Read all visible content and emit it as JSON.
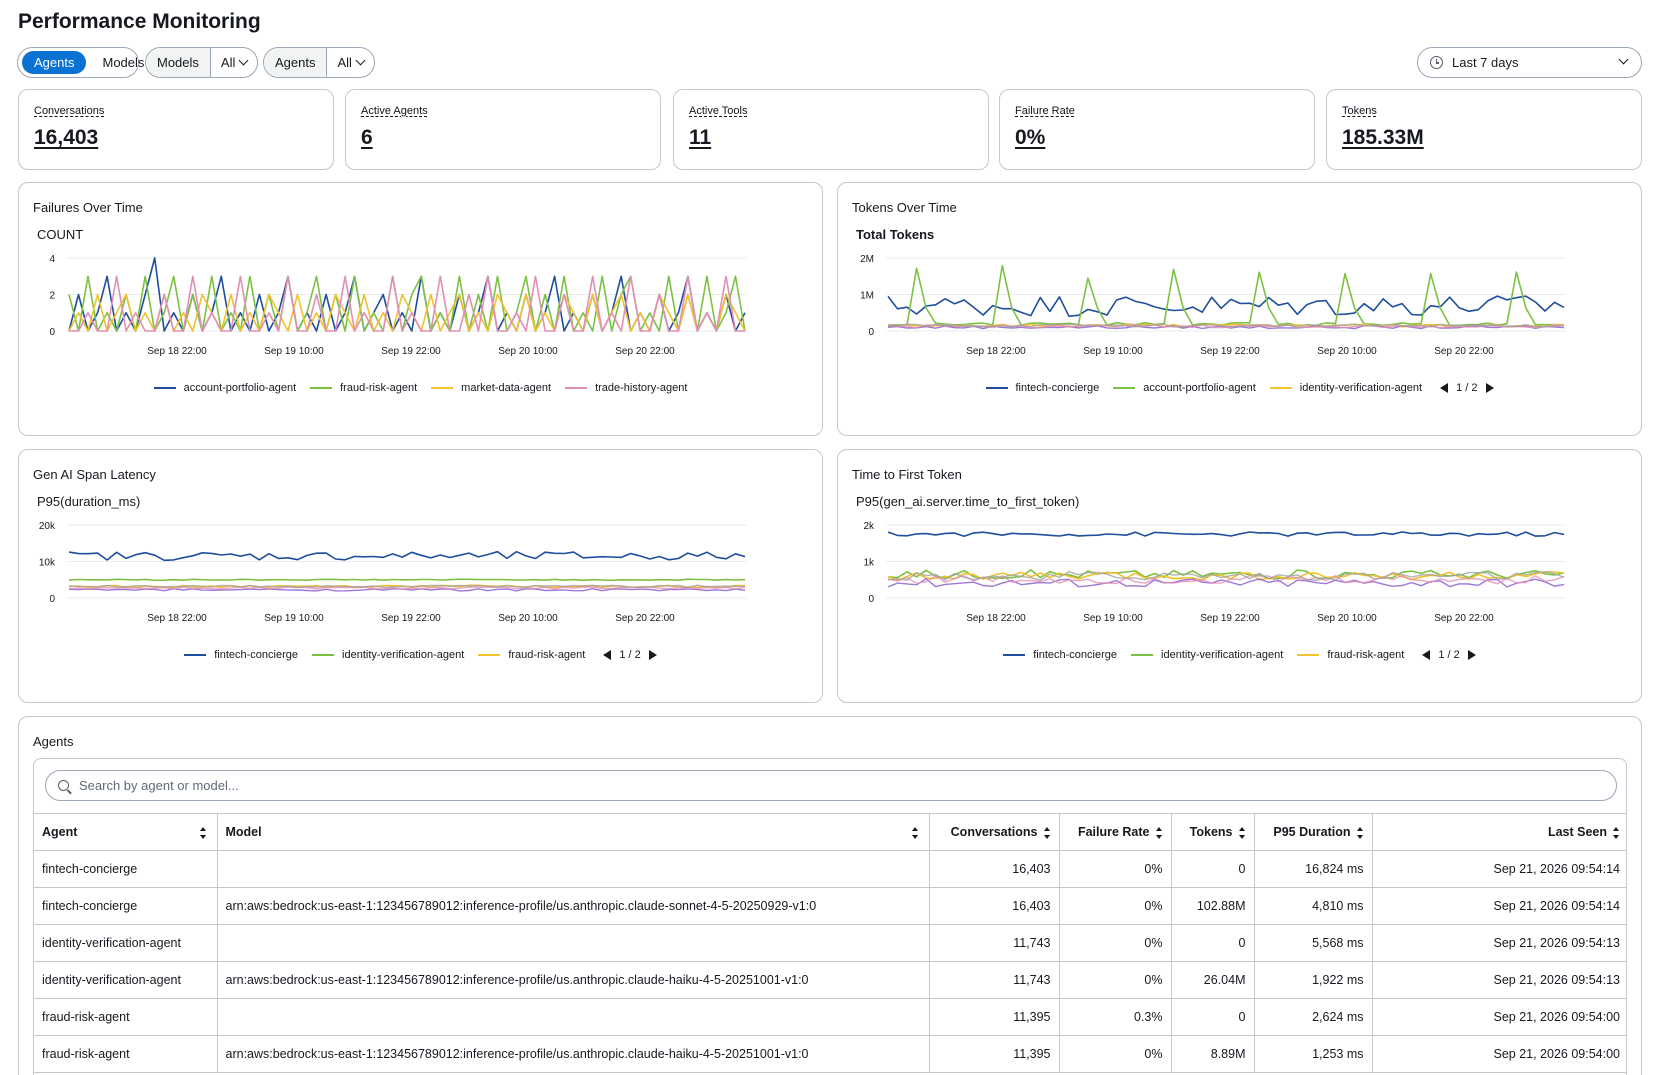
{
  "page": {
    "title": "Performance Monitoring"
  },
  "filters": {
    "view_toggle": [
      "Agents",
      "Models"
    ],
    "active_view": "Agents",
    "models_label": "Models",
    "models_value": "All",
    "agents_label": "Agents",
    "agents_value": "All",
    "date_range": "Last 7 days"
  },
  "kpis": [
    {
      "label": "Conversations",
      "value": "16,403"
    },
    {
      "label": "Active Agents",
      "value": "6"
    },
    {
      "label": "Active Tools",
      "value": "11"
    },
    {
      "label": "Failure Rate",
      "value": "0%"
    },
    {
      "label": "Tokens",
      "value": "185.33M"
    }
  ],
  "charts": {
    "failures": {
      "title": "Failures Over Time",
      "ylabel": "COUNT",
      "legend": [
        "account-portfolio-agent",
        "fraud-risk-agent",
        "market-data-agent",
        "trade-history-agent"
      ]
    },
    "tokens": {
      "title": "Tokens Over Time",
      "ylabel": "Total Tokens",
      "legend": [
        "fintech-concierge",
        "account-portfolio-agent",
        "identity-verification-agent"
      ],
      "pager": "1 / 2"
    },
    "latency": {
      "title": "Gen AI Span Latency",
      "ylabel": "P95(duration_ms)",
      "legend": [
        "fintech-concierge",
        "identity-verification-agent",
        "fraud-risk-agent"
      ],
      "pager": "1 / 2"
    },
    "ttft": {
      "title": "Time to First Token",
      "ylabel": "P95(gen_ai.server.time_to_first_token)",
      "legend": [
        "fintech-concierge",
        "identity-verification-agent",
        "fraud-risk-agent"
      ],
      "pager": "1 / 2"
    }
  },
  "chart_data": [
    {
      "type": "line",
      "title": "Failures Over Time",
      "ylabel": "COUNT",
      "yticks": [
        "0",
        "2",
        "4"
      ],
      "ylim": [
        0,
        4
      ],
      "xticks": [
        "Sep 18 22:00",
        "Sep 19 10:00",
        "Sep 19 22:00",
        "Sep 20 10:00",
        "Sep 20 22:00"
      ],
      "series": [
        {
          "name": "account-portfolio-agent",
          "color": "#1f4e9c",
          "values": [
            0,
            2,
            0,
            1,
            3,
            0,
            1,
            0,
            2,
            4,
            0,
            1,
            0,
            2,
            0,
            1,
            3,
            0,
            1,
            0,
            2,
            0,
            1,
            3,
            0,
            1,
            0,
            2,
            0,
            1,
            3,
            0,
            1,
            2,
            0,
            1,
            0,
            3,
            0,
            1,
            0,
            2,
            0,
            1,
            3,
            0,
            1,
            0,
            2,
            0,
            1,
            3,
            0,
            1,
            0,
            2,
            0,
            1,
            3,
            0,
            1,
            0,
            2,
            0,
            1,
            3,
            0,
            1,
            0,
            2,
            0,
            1
          ]
        },
        {
          "name": "fraud-risk-agent",
          "color": "#7cc242",
          "values": [
            2,
            0,
            3,
            0,
            1,
            0,
            2,
            0,
            3,
            0,
            1,
            3,
            0,
            2,
            0,
            3,
            0,
            1,
            0,
            3,
            0,
            2,
            0,
            3,
            0,
            1,
            3,
            0,
            2,
            0,
            3,
            0,
            1,
            0,
            3,
            0,
            2,
            3,
            0,
            1,
            0,
            3,
            0,
            2,
            0,
            3,
            0,
            1,
            3,
            0,
            2,
            0,
            3,
            0,
            1,
            0,
            3,
            0,
            2,
            3,
            0,
            1,
            0,
            3,
            0,
            2,
            0,
            3,
            0,
            1,
            3,
            0
          ]
        },
        {
          "name": "market-data-agent",
          "color": "#f2c12e",
          "values": [
            0,
            1,
            0,
            2,
            0,
            1,
            2,
            0,
            1,
            0,
            2,
            0,
            1,
            0,
            2,
            1,
            0,
            2,
            0,
            1,
            0,
            2,
            1,
            0,
            2,
            0,
            1,
            0,
            2,
            1,
            0,
            2,
            0,
            1,
            0,
            2,
            1,
            0,
            2,
            0,
            1,
            2,
            0,
            1,
            0,
            2,
            1,
            0,
            2,
            0,
            1,
            0,
            2,
            1,
            0,
            2,
            0,
            1,
            2,
            0,
            1,
            0,
            2,
            1,
            0,
            2,
            0,
            1,
            0,
            2,
            1,
            0
          ]
        },
        {
          "name": "trade-history-agent",
          "color": "#e38fb5",
          "values": [
            0,
            0,
            1,
            0,
            0,
            3,
            0,
            1,
            0,
            0,
            2,
            0,
            0,
            3,
            0,
            1,
            0,
            0,
            3,
            0,
            0,
            1,
            0,
            3,
            0,
            0,
            2,
            0,
            0,
            3,
            0,
            1,
            0,
            0,
            3,
            0,
            1,
            0,
            0,
            3,
            0,
            0,
            2,
            0,
            3,
            0,
            0,
            1,
            0,
            3,
            0,
            0,
            2,
            0,
            0,
            3,
            0,
            1,
            0,
            3,
            0,
            0,
            2,
            0,
            0,
            3,
            0,
            1,
            0,
            3,
            0,
            0
          ]
        }
      ]
    },
    {
      "type": "line",
      "title": "Tokens Over Time",
      "ylabel": "Total Tokens",
      "yticks": [
        "0",
        "1M",
        "2M"
      ],
      "ylim": [
        0,
        2000000
      ],
      "xticks": [
        "Sep 18 22:00",
        "Sep 19 10:00",
        "Sep 19 22:00",
        "Sep 20 10:00",
        "Sep 20 22:00"
      ],
      "series": [
        {
          "name": "fintech-concierge",
          "color": "#1f4e9c",
          "pattern": "noisy",
          "base": 700000,
          "amp": 300000
        },
        {
          "name": "account-portfolio-agent",
          "color": "#7cc242",
          "pattern": "spiky",
          "base": 150000,
          "peak": 1800000
        },
        {
          "name": "identity-verification-agent",
          "color": "#f2c12e",
          "pattern": "flat",
          "base": 150000,
          "amp": 40000
        }
      ]
    },
    {
      "type": "line",
      "title": "Gen AI Span Latency",
      "ylabel": "P95(duration_ms)",
      "yticks": [
        "0",
        "10k",
        "20k"
      ],
      "ylim": [
        0,
        20000
      ],
      "xticks": [
        "Sep 18 22:00",
        "Sep 19 10:00",
        "Sep 19 22:00",
        "Sep 20 10:00",
        "Sep 20 22:00"
      ],
      "series": [
        {
          "name": "fintech-concierge",
          "color": "#1f4e9c",
          "base": 11500,
          "amp": 1200
        },
        {
          "name": "identity-verification-agent",
          "color": "#7cc242",
          "base": 5000,
          "amp": 150
        },
        {
          "name": "fraud-risk-agent",
          "color": "#f2c12e",
          "base": 3200,
          "amp": 300
        }
      ]
    },
    {
      "type": "line",
      "title": "Time to First Token",
      "ylabel": "P95(gen_ai.server.time_to_first_token)",
      "yticks": [
        "0",
        "1k",
        "2k"
      ],
      "ylim": [
        0,
        2000
      ],
      "xticks": [
        "Sep 18 22:00",
        "Sep 19 10:00",
        "Sep 19 22:00",
        "Sep 20 10:00",
        "Sep 20 22:00"
      ],
      "series": [
        {
          "name": "fintech-concierge",
          "color": "#1f4e9c",
          "base": 1750,
          "amp": 60
        },
        {
          "name": "identity-verification-agent",
          "color": "#7cc242",
          "base": 650,
          "amp": 120
        },
        {
          "name": "fraud-risk-agent",
          "color": "#f2c12e",
          "base": 600,
          "amp": 120
        }
      ]
    }
  ],
  "agents_table": {
    "title": "Agents",
    "search_placeholder": "Search by agent or model...",
    "columns": [
      "Agent",
      "Model",
      "Conversations",
      "Failure Rate",
      "Tokens",
      "P95 Duration",
      "Last Seen"
    ],
    "rows": [
      [
        "fintech-concierge",
        "",
        "16,403",
        "0%",
        "0",
        "16,824 ms",
        "Sep 21, 2026 09:54:14"
      ],
      [
        "fintech-concierge",
        "arn:aws:bedrock:us-east-1:123456789012:inference-profile/us.anthropic.claude-sonnet-4-5-20250929-v1:0",
        "16,403",
        "0%",
        "102.88M",
        "4,810 ms",
        "Sep 21, 2026 09:54:14"
      ],
      [
        "identity-verification-agent",
        "",
        "11,743",
        "0%",
        "0",
        "5,568 ms",
        "Sep 21, 2026 09:54:13"
      ],
      [
        "identity-verification-agent",
        "arn:aws:bedrock:us-east-1:123456789012:inference-profile/us.anthropic.claude-haiku-4-5-20251001-v1:0",
        "11,743",
        "0%",
        "26.04M",
        "1,922 ms",
        "Sep 21, 2026 09:54:13"
      ],
      [
        "fraud-risk-agent",
        "",
        "11,395",
        "0.3%",
        "0",
        "2,624 ms",
        "Sep 21, 2026 09:54:00"
      ],
      [
        "fraud-risk-agent",
        "arn:aws:bedrock:us-east-1:123456789012:inference-profile/us.anthropic.claude-haiku-4-5-20251001-v1:0",
        "11,395",
        "0%",
        "8.89M",
        "1,253 ms",
        "Sep 21, 2026 09:54:00"
      ]
    ]
  }
}
